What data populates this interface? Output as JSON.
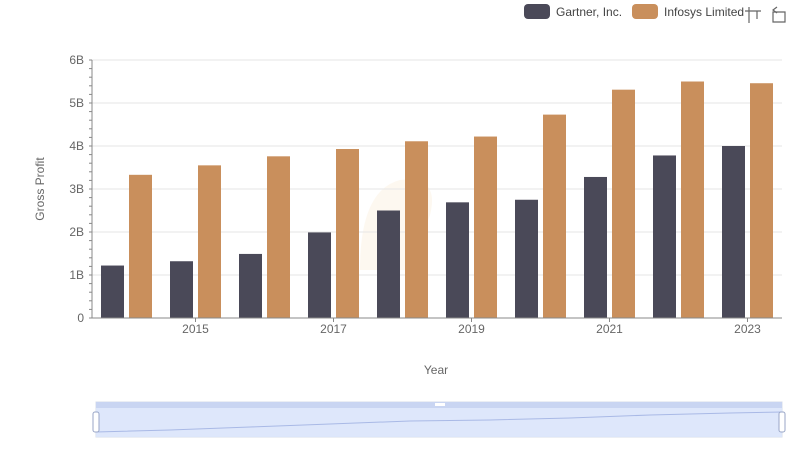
{
  "legend": {
    "items": [
      {
        "label": "Gartner, Inc.",
        "color": "#4a4958"
      },
      {
        "label": "Infosys Limited",
        "color": "#c98f5c"
      }
    ]
  },
  "toolbar": {
    "icons": [
      "zoom-icon",
      "restore-icon"
    ]
  },
  "chart_data": {
    "type": "bar",
    "x": [
      2014,
      2015,
      2016,
      2017,
      2018,
      2019,
      2020,
      2021,
      2022,
      2023
    ],
    "xlabel": "Year",
    "ylabel": "Gross Profit",
    "ylim": [
      0,
      6000000000
    ],
    "y_ticks": [
      "0",
      "1B",
      "2B",
      "3B",
      "4B",
      "5B",
      "6B"
    ],
    "x_ticks": [
      "2015",
      "2017",
      "2019",
      "2021",
      "2023"
    ],
    "grid": true,
    "legend_position": "top-right",
    "series": [
      {
        "name": "Gartner, Inc.",
        "color": "#4a4958",
        "values": [
          1220000000,
          1320000000,
          1490000000,
          1990000000,
          2500000000,
          2690000000,
          2750000000,
          3280000000,
          3780000000,
          4000000000
        ]
      },
      {
        "name": "Infosys Limited",
        "color": "#c98f5c",
        "values": [
          3330000000,
          3550000000,
          3760000000,
          3930000000,
          4110000000,
          4220000000,
          4730000000,
          5310000000,
          5500000000,
          5460000000
        ]
      }
    ]
  }
}
